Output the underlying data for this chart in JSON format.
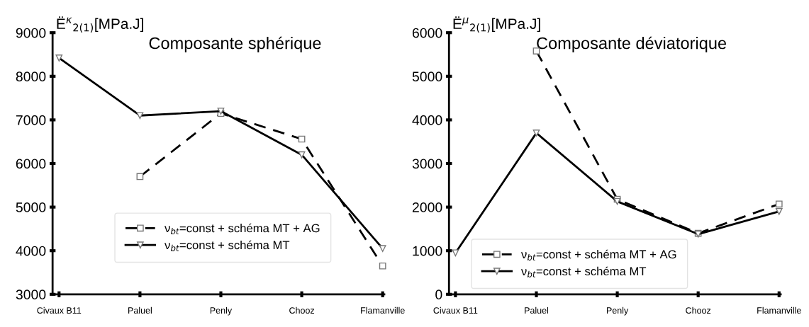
{
  "chart_data": [
    {
      "type": "line",
      "title": "Composante sphérique",
      "ylabel": "Ë$^{κ}$$_{2(1)}$[MPa.J]",
      "categories": [
        "Civaux B11",
        "Paluel",
        "Penly",
        "Chooz",
        "Flamanville"
      ],
      "ylim": [
        3000,
        9000
      ],
      "yticks": [
        3000,
        4000,
        5000,
        6000,
        7000,
        8000,
        9000
      ],
      "grid": false,
      "legend": "bottom",
      "series": [
        {
          "name": "ν$_{bt}$=const + schéma MT + AG",
          "color": "#000000",
          "marker": "square",
          "line_style": "dashed",
          "values": [
            null,
            5700,
            7150,
            6560,
            3650
          ]
        },
        {
          "name": "ν$_{bt}$=const + schéma MT",
          "color": "#000000",
          "marker": "triangle",
          "line_style": "solid",
          "values": [
            8420,
            7100,
            7200,
            6200,
            4050
          ]
        }
      ]
    },
    {
      "type": "line",
      "title": "Composante déviatorique",
      "ylabel": "Ë$^{μ}$$_{2(1)}$[MPa.J]",
      "categories": [
        "Civaux B11",
        "Paluel",
        "Penly",
        "Chooz",
        "Flamanville"
      ],
      "ylim": [
        0,
        6000
      ],
      "yticks": [
        0,
        1000,
        2000,
        3000,
        4000,
        5000,
        6000
      ],
      "grid": false,
      "legend": "bottom left",
      "series": [
        {
          "name": "ν$_{bt}$=const + schéma MT + AG",
          "color": "#000000",
          "marker": "square",
          "line_style": "dashed",
          "values": [
            null,
            5580,
            2180,
            1400,
            2070
          ]
        },
        {
          "name": "ν$_{bt}$=const + schéma MT",
          "color": "#000000",
          "marker": "triangle",
          "line_style": "solid",
          "values": [
            950,
            3700,
            2130,
            1380,
            1900
          ]
        }
      ]
    }
  ]
}
